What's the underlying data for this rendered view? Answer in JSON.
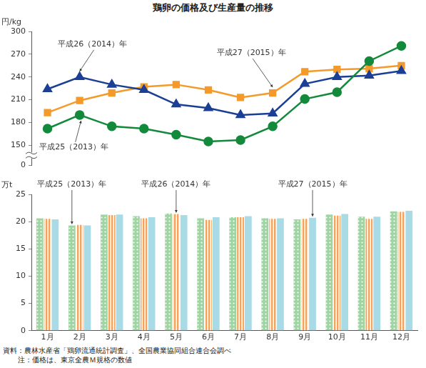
{
  "title": "鶏卵の価格及び生産量の推移",
  "chart_data": [
    {
      "type": "line",
      "y_label": "円/kg",
      "categories": [
        "1月",
        "2月",
        "3月",
        "4月",
        "5月",
        "6月",
        "7月",
        "8月",
        "9月",
        "10月",
        "11月",
        "12月"
      ],
      "series": [
        {
          "name": "平成25（2013）年",
          "color": "#138a3b",
          "marker": "circle",
          "values": [
            172,
            190,
            175,
            172,
            164,
            155,
            157,
            175,
            211,
            220,
            261,
            281
          ]
        },
        {
          "name": "平成26（2014）年",
          "color": "#1c3f96",
          "marker": "triangle",
          "values": [
            224,
            240,
            230,
            223,
            204,
            199,
            190,
            192,
            231,
            240,
            242,
            248
          ]
        },
        {
          "name": "平成27（2015）年",
          "color": "#f39a2b",
          "marker": "square",
          "values": [
            193,
            209,
            219,
            227,
            230,
            223,
            213,
            219,
            247,
            250,
            251,
            255
          ]
        }
      ],
      "ylim": [
        0,
        300
      ],
      "yticks": [
        0,
        150,
        180,
        210,
        240,
        270,
        300
      ],
      "grid": false,
      "tick_labels": "y"
    },
    {
      "type": "bar",
      "y_label": "万t",
      "categories": [
        "1月",
        "2月",
        "3月",
        "4月",
        "5月",
        "6月",
        "7月",
        "8月",
        "9月",
        "10月",
        "11月",
        "12月"
      ],
      "series": [
        {
          "name": "平成25（2013）年",
          "color": "#9fd4a3",
          "values": [
            20.6,
            19.3,
            21.3,
            21.0,
            21.5,
            20.6,
            20.8,
            20.6,
            20.4,
            21.3,
            20.9,
            21.9
          ]
        },
        {
          "name": "平成26（2014）年",
          "color": "#f5a35c",
          "values": [
            20.5,
            19.4,
            21.2,
            20.6,
            21.4,
            20.3,
            20.8,
            20.5,
            20.5,
            21.1,
            20.5,
            21.8
          ]
        },
        {
          "name": "平成27（2015）年",
          "color": "#a8dbe6",
          "values": [
            20.4,
            19.3,
            21.3,
            20.8,
            21.2,
            20.8,
            21.0,
            20.6,
            20.7,
            21.4,
            20.9,
            22.0
          ]
        }
      ],
      "ylim": [
        0,
        25
      ],
      "yticks": [
        0,
        5,
        10,
        15,
        20,
        25
      ],
      "grid": false
    }
  ],
  "source": "資料：農林水産省「鶏卵流通統計調査」、全国農業協同組合連合会調べ",
  "note": "注：価格は、東京全農Ｍ規格の数値"
}
